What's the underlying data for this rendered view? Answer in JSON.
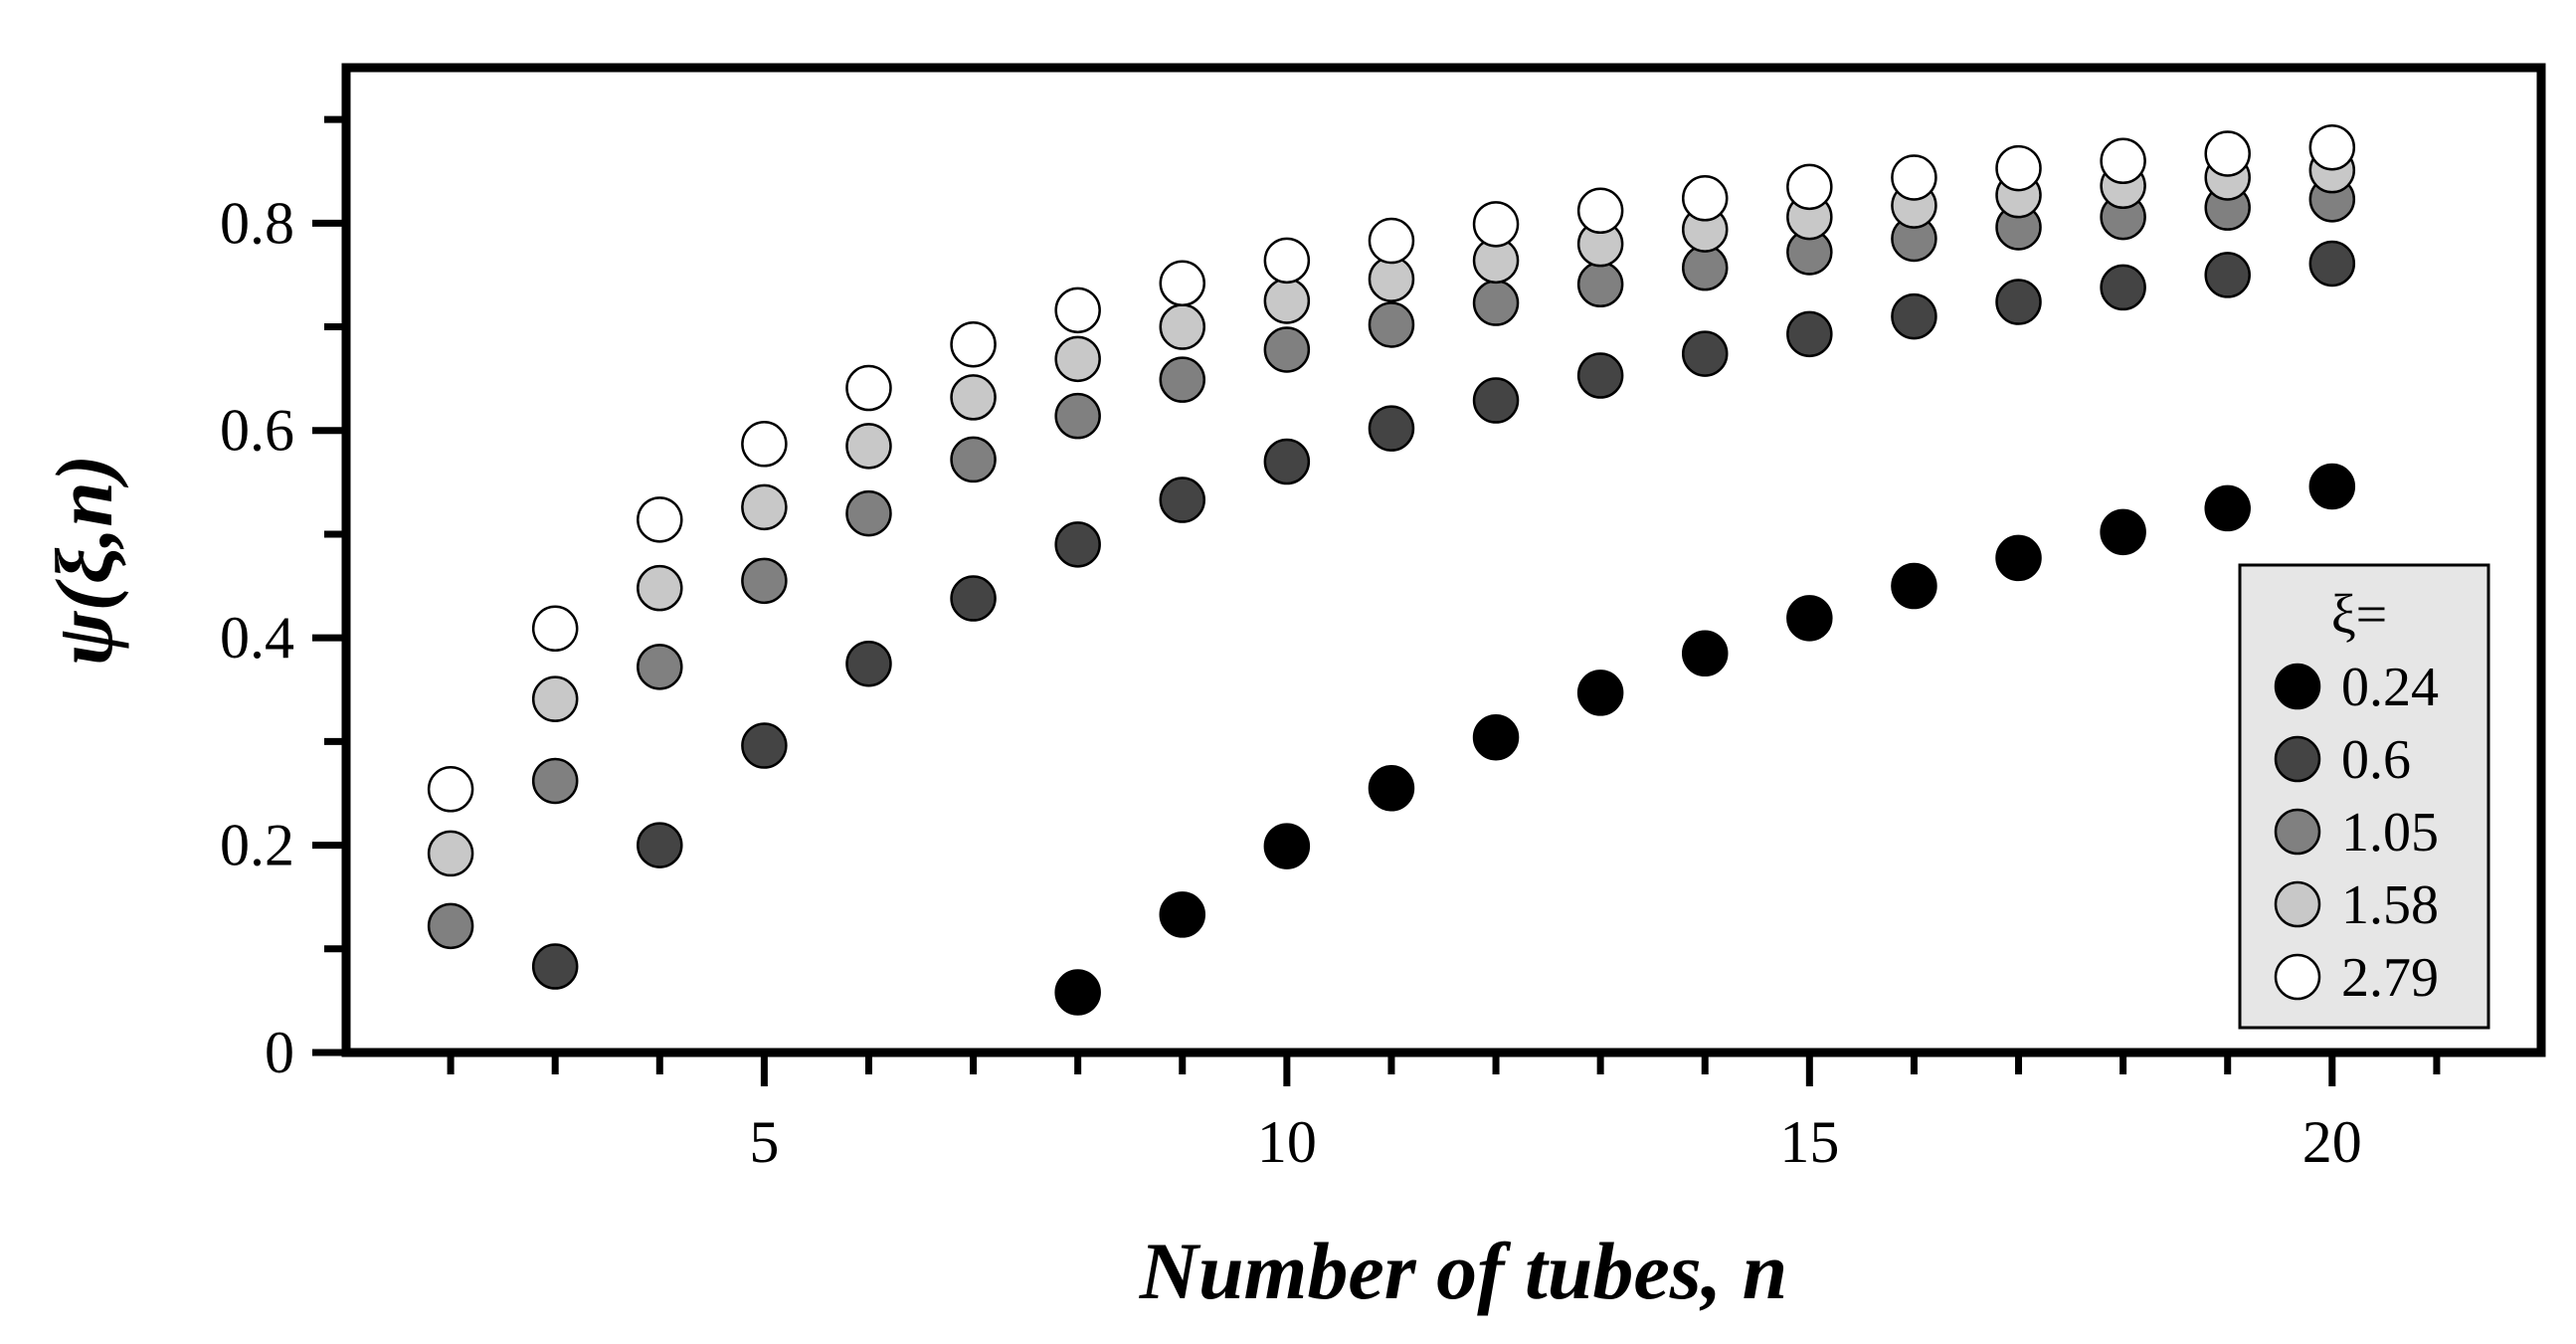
{
  "chart_data": {
    "type": "scatter",
    "title": "",
    "xlabel": "Number of tubes, n",
    "ylabel": "ψ(ξ,n)",
    "xlim": [
      1,
      22
    ],
    "ylim": [
      0,
      0.95
    ],
    "xticks": [
      5,
      10,
      15,
      20
    ],
    "xtick_labels": [
      "5",
      "10",
      "15",
      "20"
    ],
    "yticks": [
      0,
      0.2,
      0.4,
      0.6,
      0.8
    ],
    "ytick_labels": [
      "0",
      "0.2",
      "0.4",
      "0.6",
      "0.8"
    ],
    "grid": false,
    "legend": {
      "title": "ξ=",
      "position": "bottom-right"
    },
    "series": [
      {
        "name": "0.24",
        "color": "#000000",
        "x": [
          8,
          9,
          10,
          11,
          12,
          13,
          14,
          15,
          16,
          17,
          18,
          19,
          20
        ],
        "y": [
          0.058,
          0.133,
          0.199,
          0.255,
          0.304,
          0.347,
          0.385,
          0.419,
          0.45,
          0.477,
          0.502,
          0.525,
          0.546
        ]
      },
      {
        "name": "0.6",
        "color": "#444444",
        "x": [
          3,
          4,
          5,
          6,
          7,
          8,
          9,
          10,
          11,
          12,
          13,
          14,
          15,
          16,
          17,
          18,
          19,
          20
        ],
        "y": [
          0.083,
          0.2,
          0.296,
          0.375,
          0.438,
          0.49,
          0.533,
          0.57,
          0.602,
          0.629,
          0.653,
          0.674,
          0.693,
          0.71,
          0.724,
          0.738,
          0.75,
          0.761
        ]
      },
      {
        "name": "1.05",
        "color": "#808080",
        "x": [
          2,
          3,
          4,
          5,
          6,
          7,
          8,
          9,
          10,
          11,
          12,
          13,
          14,
          15,
          16,
          17,
          18,
          19,
          20
        ],
        "y": [
          0.122,
          0.262,
          0.372,
          0.455,
          0.52,
          0.572,
          0.614,
          0.649,
          0.678,
          0.702,
          0.723,
          0.741,
          0.757,
          0.772,
          0.785,
          0.796,
          0.806,
          0.815,
          0.823
        ]
      },
      {
        "name": "1.58",
        "color": "#c8c8c8",
        "x": [
          2,
          3,
          4,
          5,
          6,
          7,
          8,
          9,
          10,
          11,
          12,
          13,
          14,
          15,
          16,
          17,
          18,
          19,
          20
        ],
        "y": [
          0.192,
          0.341,
          0.448,
          0.526,
          0.585,
          0.632,
          0.669,
          0.7,
          0.725,
          0.746,
          0.764,
          0.78,
          0.794,
          0.806,
          0.817,
          0.827,
          0.836,
          0.844,
          0.851
        ]
      },
      {
        "name": "2.79",
        "color": "#ffffff",
        "x": [
          2,
          3,
          4,
          5,
          6,
          7,
          8,
          9,
          10,
          11,
          12,
          13,
          14,
          15,
          16,
          17,
          18,
          19,
          20
        ],
        "y": [
          0.254,
          0.409,
          0.514,
          0.587,
          0.641,
          0.683,
          0.716,
          0.742,
          0.764,
          0.783,
          0.799,
          0.812,
          0.824,
          0.835,
          0.844,
          0.853,
          0.86,
          0.867,
          0.873
        ]
      }
    ]
  }
}
